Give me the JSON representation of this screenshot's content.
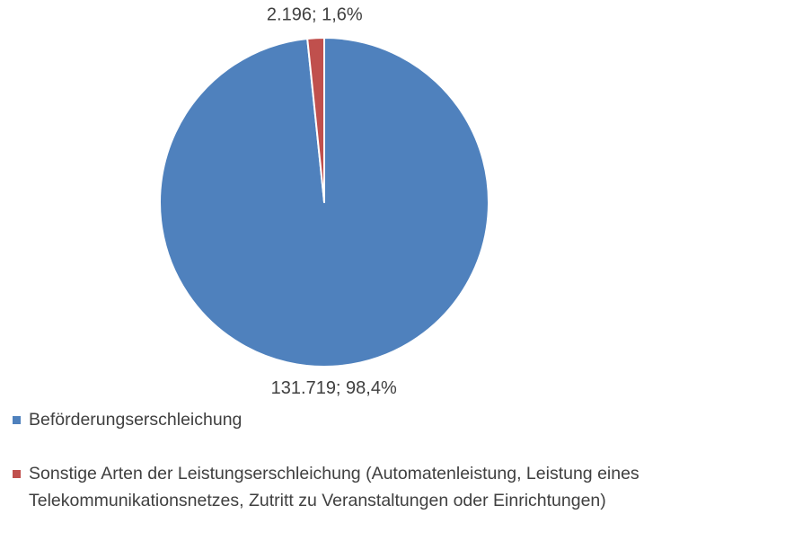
{
  "chart_data": {
    "type": "pie",
    "categories": [
      "Beförderungserschleichung",
      "Sonstige Arten der Leistungserschleichung (Automatenleistung, Leistung eines Telekommunikationsnetzes, Zutritt zu Veranstaltungen oder Einrichtungen)"
    ],
    "values": [
      131719,
      2196
    ],
    "value_labels": [
      "131.719; 98,4%",
      "2.196; 1,6%"
    ],
    "colors": [
      "#4f81bd",
      "#c0504d"
    ]
  }
}
